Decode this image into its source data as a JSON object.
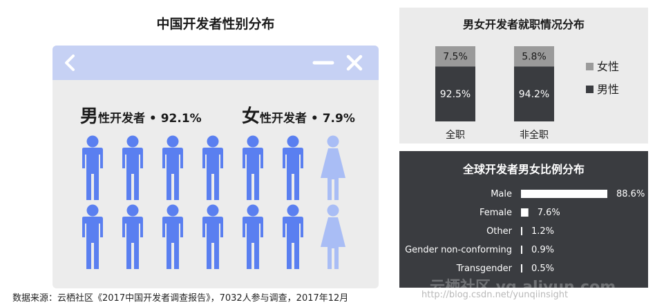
{
  "left": {
    "title": "中国开发者性别分布",
    "male_big": "男",
    "male_rest": "性开发者 • 92.1%",
    "female_big": "女",
    "female_rest": "性开发者 • 7.9%"
  },
  "colors": {
    "male": "#5a7ff0",
    "female": "#a9bdf5",
    "window_bar": "#c6d1f4",
    "female_bar": "#9a9a9a",
    "male_bar": "#3a3c40"
  },
  "icons": [
    "chevron-left-icon",
    "minimize-icon",
    "close-icon",
    "male-person-icon",
    "female-person-icon"
  ],
  "chart_data": [
    {
      "type": "bar",
      "title": "中国开发者性别分布",
      "categories": [
        "男性开发者",
        "女性开发者"
      ],
      "values": [
        92.1,
        7.9
      ],
      "unit": "%",
      "icon_grid": {
        "rows": 2,
        "cols": 7,
        "male_per_row": 6,
        "female_per_row": 1
      }
    },
    {
      "type": "bar",
      "stacked": true,
      "title": "男女开发者就职情况分布",
      "categories": [
        "全职",
        "非全职"
      ],
      "series": [
        {
          "name": "女性",
          "values": [
            7.5,
            5.8
          ],
          "labels": [
            "7.5%",
            "5.8%"
          ]
        },
        {
          "name": "男性",
          "values": [
            92.5,
            94.2
          ],
          "labels": [
            "92.5%",
            "94.2%"
          ]
        }
      ],
      "legend": "right",
      "ylim": [
        0,
        100
      ]
    },
    {
      "type": "bar",
      "orientation": "horizontal",
      "title": "全球开发者男女比例分布",
      "categories": [
        "Male",
        "Female",
        "Other",
        "Gender non-conforming",
        "Transgender"
      ],
      "values": [
        88.6,
        7.6,
        1.2,
        0.9,
        0.5
      ],
      "labels": [
        "88.6%",
        "7.6%",
        "1.2%",
        "0.9%",
        "0.5%"
      ],
      "xlim": [
        0,
        100
      ]
    }
  ],
  "footnote": "数据来源：云栖社区《2017中国开发者调查报告》，7032人参与调查，2017年12月",
  "watermark": "http://blog.csdn.net/yunqiinsight",
  "watermark_brand": "云栖社区 yq.aliyun.com"
}
